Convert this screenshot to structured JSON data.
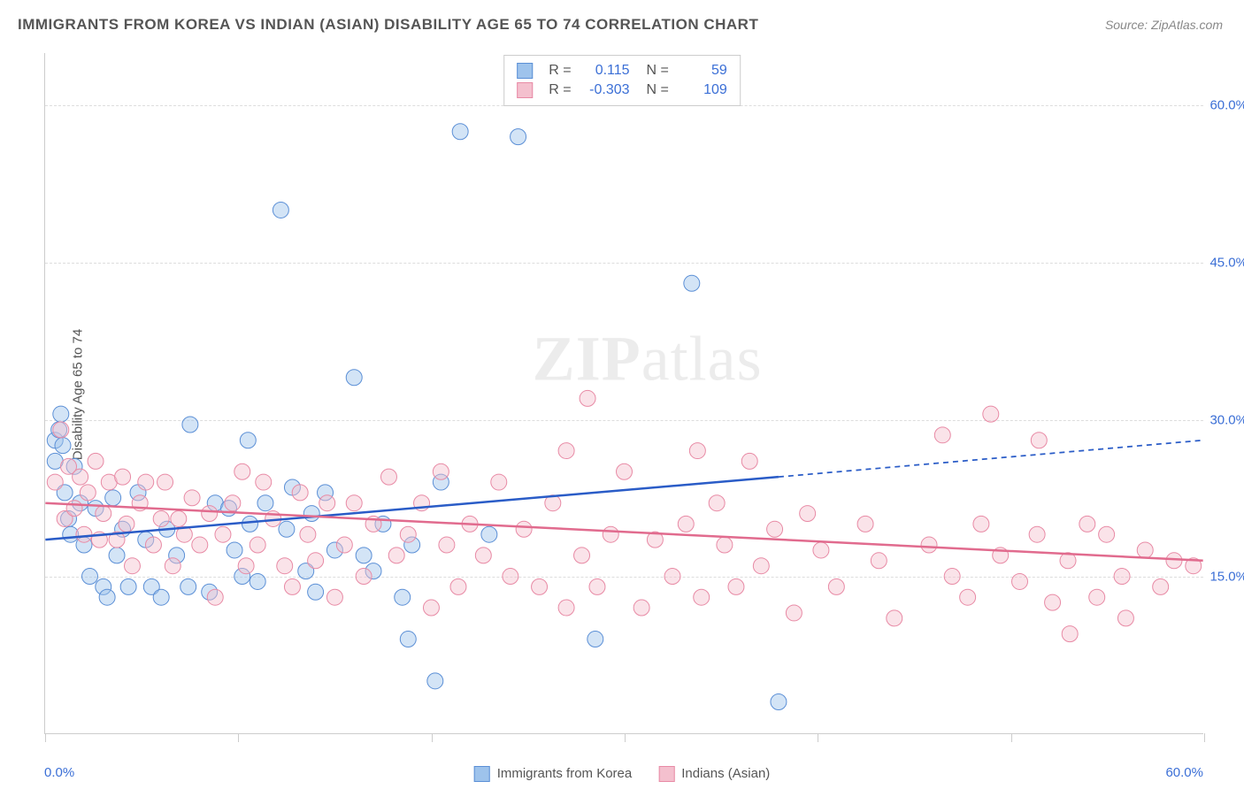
{
  "title": "IMMIGRANTS FROM KOREA VS INDIAN (ASIAN) DISABILITY AGE 65 TO 74 CORRELATION CHART",
  "source": "Source: ZipAtlas.com",
  "ylabel": "Disability Age 65 to 74",
  "watermark_a": "ZIP",
  "watermark_b": "atlas",
  "chart": {
    "type": "scatter-with-regression",
    "background_color": "#ffffff",
    "grid_color": "#dddddd",
    "axis_color": "#cccccc",
    "xlim": [
      0,
      60
    ],
    "ylim": [
      0,
      65
    ],
    "y_ticks": [
      15,
      30,
      45,
      60
    ],
    "y_tick_labels": [
      "15.0%",
      "30.0%",
      "45.0%",
      "60.0%"
    ],
    "x_ticks": [
      0,
      10,
      20,
      30,
      40,
      50,
      60
    ],
    "x_range_labels": [
      "0.0%",
      "60.0%"
    ],
    "axis_label_color": "#3b6fd6",
    "axis_label_fontsize": 15,
    "title_fontsize": 17,
    "marker_radius": 9,
    "marker_opacity": 0.45,
    "line_width": 2.5,
    "series": [
      {
        "name": "Immigrants from Korea",
        "color_fill": "#9ec3ec",
        "color_stroke": "#5b8fd6",
        "line_color": "#2a5cc7",
        "R": "0.115",
        "N": "59",
        "regression": {
          "x1": 0,
          "y1": 18.5,
          "x2": 38,
          "y2": 24.5,
          "x2_dash": 60,
          "y2_dash": 28.0
        },
        "points": [
          [
            0.5,
            26
          ],
          [
            0.5,
            28
          ],
          [
            0.7,
            29
          ],
          [
            0.8,
            30.5
          ],
          [
            0.9,
            27.5
          ],
          [
            1.0,
            23
          ],
          [
            1.2,
            20.5
          ],
          [
            1.3,
            19
          ],
          [
            1.5,
            25.5
          ],
          [
            1.8,
            22
          ],
          [
            2.0,
            18
          ],
          [
            2.3,
            15.0
          ],
          [
            2.6,
            21.5
          ],
          [
            3.0,
            14
          ],
          [
            3.2,
            13
          ],
          [
            3.5,
            22.5
          ],
          [
            3.7,
            17
          ],
          [
            4.0,
            19.5
          ],
          [
            4.3,
            14
          ],
          [
            4.8,
            23
          ],
          [
            5.2,
            18.5
          ],
          [
            5.5,
            14
          ],
          [
            6.0,
            13
          ],
          [
            6.3,
            19.5
          ],
          [
            6.8,
            17
          ],
          [
            7.4,
            14
          ],
          [
            7.5,
            29.5
          ],
          [
            8.5,
            13.5
          ],
          [
            8.8,
            22
          ],
          [
            9.5,
            21.5
          ],
          [
            9.8,
            17.5
          ],
          [
            10.2,
            15
          ],
          [
            10.5,
            28
          ],
          [
            10.6,
            20
          ],
          [
            11.0,
            14.5
          ],
          [
            11.4,
            22
          ],
          [
            12.2,
            50
          ],
          [
            12.5,
            19.5
          ],
          [
            12.8,
            23.5
          ],
          [
            13.5,
            15.5
          ],
          [
            13.8,
            21
          ],
          [
            14.0,
            13.5
          ],
          [
            14.5,
            23
          ],
          [
            15.0,
            17.5
          ],
          [
            16.0,
            34
          ],
          [
            16.5,
            17
          ],
          [
            17.0,
            15.5
          ],
          [
            17.5,
            20
          ],
          [
            18.5,
            13
          ],
          [
            18.8,
            9
          ],
          [
            19.0,
            18
          ],
          [
            20.2,
            5
          ],
          [
            20.5,
            24
          ],
          [
            21.5,
            57.5
          ],
          [
            23.0,
            19
          ],
          [
            24.5,
            57
          ],
          [
            28.5,
            9
          ],
          [
            33.5,
            43
          ],
          [
            38.0,
            3
          ]
        ]
      },
      {
        "name": "Indians (Asian)",
        "color_fill": "#f4c0ce",
        "color_stroke": "#e88aa5",
        "line_color": "#e16b8e",
        "R": "-0.303",
        "N": "109",
        "regression": {
          "x1": 0,
          "y1": 22,
          "x2": 60,
          "y2": 16.5,
          "x2_dash": 60,
          "y2_dash": 16.5
        },
        "points": [
          [
            0.5,
            24
          ],
          [
            0.8,
            29
          ],
          [
            1.0,
            20.5
          ],
          [
            1.2,
            25.5
          ],
          [
            1.5,
            21.5
          ],
          [
            1.8,
            24.5
          ],
          [
            2.0,
            19
          ],
          [
            2.2,
            23
          ],
          [
            2.6,
            26
          ],
          [
            2.8,
            18.5
          ],
          [
            3.0,
            21
          ],
          [
            3.3,
            24
          ],
          [
            3.7,
            18.5
          ],
          [
            4.0,
            24.5
          ],
          [
            4.2,
            20
          ],
          [
            4.5,
            16
          ],
          [
            4.9,
            22
          ],
          [
            5.2,
            24
          ],
          [
            5.6,
            18
          ],
          [
            6.0,
            20.5
          ],
          [
            6.2,
            24
          ],
          [
            6.6,
            16
          ],
          [
            6.9,
            20.5
          ],
          [
            7.2,
            19
          ],
          [
            7.6,
            22.5
          ],
          [
            8.0,
            18
          ],
          [
            8.5,
            21
          ],
          [
            8.8,
            13
          ],
          [
            9.2,
            19
          ],
          [
            9.7,
            22
          ],
          [
            10.2,
            25
          ],
          [
            10.4,
            16
          ],
          [
            11.0,
            18
          ],
          [
            11.3,
            24
          ],
          [
            11.8,
            20.5
          ],
          [
            12.4,
            16
          ],
          [
            12.8,
            14
          ],
          [
            13.2,
            23
          ],
          [
            13.6,
            19
          ],
          [
            14.0,
            16.5
          ],
          [
            14.6,
            22
          ],
          [
            15.0,
            13
          ],
          [
            15.5,
            18
          ],
          [
            16.0,
            22
          ],
          [
            16.5,
            15
          ],
          [
            17.0,
            20
          ],
          [
            17.8,
            24.5
          ],
          [
            18.2,
            17
          ],
          [
            18.8,
            19
          ],
          [
            19.5,
            22
          ],
          [
            20.0,
            12
          ],
          [
            20.8,
            18
          ],
          [
            20.5,
            25
          ],
          [
            21.4,
            14
          ],
          [
            22.0,
            20
          ],
          [
            22.7,
            17
          ],
          [
            23.5,
            24
          ],
          [
            24.1,
            15
          ],
          [
            24.8,
            19.5
          ],
          [
            25.6,
            14
          ],
          [
            26.3,
            22
          ],
          [
            27.0,
            12
          ],
          [
            27.0,
            27
          ],
          [
            27.8,
            17
          ],
          [
            28.1,
            32
          ],
          [
            28.6,
            14
          ],
          [
            29.3,
            19
          ],
          [
            30.0,
            25
          ],
          [
            30.9,
            12
          ],
          [
            31.6,
            18.5
          ],
          [
            32.5,
            15
          ],
          [
            33.2,
            20
          ],
          [
            33.8,
            27
          ],
          [
            34.0,
            13
          ],
          [
            34.8,
            22
          ],
          [
            35.2,
            18
          ],
          [
            35.8,
            14
          ],
          [
            36.5,
            26
          ],
          [
            37.1,
            16
          ],
          [
            37.8,
            19.5
          ],
          [
            38.8,
            11.5
          ],
          [
            39.5,
            21
          ],
          [
            40.2,
            17.5
          ],
          [
            41.0,
            14
          ],
          [
            42.5,
            20
          ],
          [
            43.2,
            16.5
          ],
          [
            44.0,
            11
          ],
          [
            45.8,
            18
          ],
          [
            46.5,
            28.5
          ],
          [
            47.0,
            15
          ],
          [
            47.8,
            13
          ],
          [
            48.5,
            20
          ],
          [
            49.0,
            30.5
          ],
          [
            49.5,
            17
          ],
          [
            50.5,
            14.5
          ],
          [
            51.4,
            19
          ],
          [
            51.5,
            28
          ],
          [
            52.2,
            12.5
          ],
          [
            53.0,
            16.5
          ],
          [
            53.1,
            9.5
          ],
          [
            54.0,
            20
          ],
          [
            54.5,
            13
          ],
          [
            55.0,
            19
          ],
          [
            55.8,
            15
          ],
          [
            56.0,
            11
          ],
          [
            57.0,
            17.5
          ],
          [
            57.8,
            14
          ],
          [
            58.5,
            16.5
          ],
          [
            59.5,
            16.0
          ]
        ]
      }
    ],
    "bottom_legend": [
      {
        "label": "Immigrants from Korea",
        "fill": "#9ec3ec",
        "stroke": "#5b8fd6"
      },
      {
        "label": "Indians (Asian)",
        "fill": "#f4c0ce",
        "stroke": "#e88aa5"
      }
    ]
  }
}
